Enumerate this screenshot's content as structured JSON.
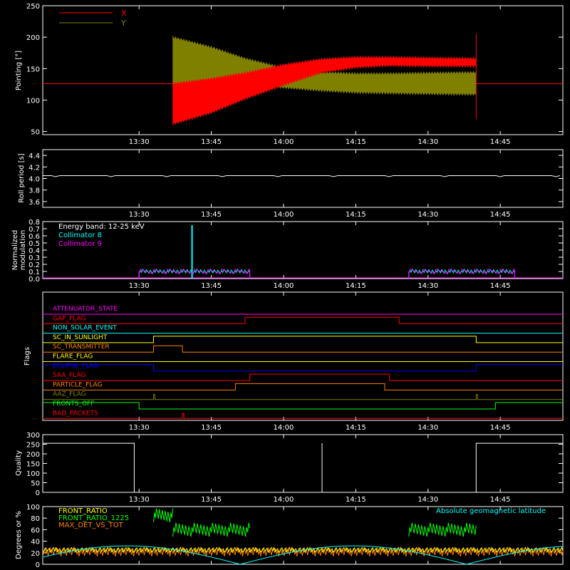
{
  "chart_data": [
    {
      "type": "line",
      "ylabel": "Pointing [°]",
      "ylim": [
        45,
        250
      ],
      "yticks": [
        50,
        100,
        150,
        200,
        250
      ],
      "legend": "top-left",
      "series": [
        {
          "name": "X",
          "color": "#ff0000",
          "baseline": 126,
          "active_from": "13:37",
          "active_to": "14:40",
          "envelope_x": [
            "13:37",
            "13:45",
            "13:52",
            "14:00",
            "14:08",
            "14:15",
            "14:22",
            "14:30",
            "14:40"
          ],
          "envelope_hi": [
            128,
            136,
            145,
            158,
            167,
            170,
            170,
            169,
            168
          ],
          "envelope_lo": [
            60,
            78,
            100,
            122,
            142,
            150,
            153,
            152,
            152
          ]
        },
        {
          "name": "Y",
          "color": "#808000",
          "baseline": 126,
          "active_from": "13:37",
          "active_to": "14:40",
          "envelope_x": [
            "13:37",
            "13:45",
            "13:52",
            "14:00",
            "14:08",
            "14:15",
            "14:22",
            "14:30",
            "14:40"
          ],
          "envelope_hi": [
            202,
            186,
            168,
            153,
            146,
            144,
            144,
            145,
            146
          ],
          "envelope_lo": [
            118,
            120,
            122,
            118,
            113,
            110,
            109,
            108,
            107
          ]
        }
      ]
    },
    {
      "type": "line",
      "ylabel": "Roll period [s]",
      "ylim": [
        3.5,
        4.5
      ],
      "yticks": [
        "3.6",
        "3.8",
        "4.0",
        "4.2",
        "4.4"
      ],
      "series": [
        {
          "name": "",
          "color": "#ffffff",
          "values": 4.05
        }
      ]
    },
    {
      "type": "line",
      "ylabel": "Normalized modulation",
      "ylim": [
        0,
        0.8
      ],
      "yticks": [
        "0.0",
        "0.1",
        "0.2",
        "0.3",
        "0.4",
        "0.5",
        "0.6",
        "0.7",
        "0.8"
      ],
      "annotation": "Energy band: 12-25 keV",
      "series": [
        {
          "name": "Collimator 8",
          "color": "#00ffff",
          "level": 0.1,
          "segments": [
            [
              "13:30",
              "13:53"
            ],
            [
              "14:26",
              "14:48"
            ]
          ],
          "spike": {
            "x": "13:41",
            "y": 0.75
          }
        },
        {
          "name": "Collimator 9",
          "color": "#ff00ff",
          "level": 0.1,
          "segments": [
            [
              "13:30",
              "13:53"
            ],
            [
              "14:26",
              "14:48"
            ]
          ]
        }
      ]
    },
    {
      "type": "step",
      "ylabel": "Flags",
      "flags": [
        {
          "name": "ATTENUATOR_STATE",
          "color": "#ff00ff",
          "transitions": []
        },
        {
          "name": "GAP_FLAG",
          "color": "#ff0000",
          "transitions": [
            [
              "13:52",
              1
            ],
            [
              "14:24",
              0
            ]
          ]
        },
        {
          "name": "NON_SOLAR_EVENT",
          "color": "#00ffff",
          "transitions": []
        },
        {
          "name": "SC_IN_SUNLIGHT",
          "color": "#ffff00",
          "start": 0,
          "transitions": [
            [
              "13:33",
              1
            ],
            [
              "14:40",
              0
            ]
          ]
        },
        {
          "name": "SC_TRANSMITTER",
          "color": "#ff8000",
          "transitions": [
            [
              "13:33",
              1
            ],
            [
              "13:39",
              0
            ]
          ]
        },
        {
          "name": "FLARE_FLAG",
          "color": "#ffff00",
          "transitions": []
        },
        {
          "name": "ECLIPSE_FLAG",
          "color": "#0000ff",
          "start": 1,
          "transitions": [
            [
              "13:33",
              0
            ],
            [
              "14:40",
              1
            ]
          ]
        },
        {
          "name": "SAA_FLAG",
          "color": "#ff0000",
          "transitions": [
            [
              "13:53",
              1
            ],
            [
              "14:22",
              0
            ]
          ]
        },
        {
          "name": "PARTICLE_FLAG",
          "color": "#ff8000",
          "transitions": [
            [
              "13:50",
              1
            ],
            [
              "14:21",
              0
            ]
          ]
        },
        {
          "name": "AAZ_FLAG",
          "color": "#808000",
          "pulses": [
            "13:33",
            "14:40"
          ]
        },
        {
          "name": "FRONTS_OFF",
          "color": "#00ff00",
          "start": 1,
          "transitions": [
            [
              "13:30",
              0
            ],
            [
              "14:44",
              1
            ]
          ]
        },
        {
          "name": "BAD_PACKETS",
          "color": "#ff0000",
          "pulses": [
            "13:39"
          ]
        }
      ]
    },
    {
      "type": "line",
      "ylabel": "Quality",
      "ylim": [
        0,
        300
      ],
      "yticks": [
        "0",
        "50",
        "100",
        "150",
        "200",
        "250",
        "300"
      ],
      "series": [
        {
          "name": "",
          "color": "#ffffff",
          "points": [
            [
              "13:10",
              255
            ],
            [
              "13:29",
              255
            ],
            [
              "13:29",
              0
            ],
            [
              "14:08",
              0
            ],
            [
              "14:08",
              255
            ],
            [
              "14:08",
              0
            ],
            [
              "14:40",
              0
            ],
            [
              "14:40",
              255
            ],
            [
              "14:58",
              255
            ]
          ]
        }
      ]
    },
    {
      "type": "line",
      "ylabel": "Degrees or %",
      "ylim": [
        0,
        100
      ],
      "yticks": [
        "0",
        "20",
        "40",
        "60",
        "80",
        "100"
      ],
      "series": [
        {
          "name": "FRONT_RATIO",
          "color": "#ffff00",
          "approx": 25
        },
        {
          "name": "FRONT_RATIO_1225",
          "color": "#00ff00",
          "approx_levels": [
            [
              "13:33",
              "13:37",
              85
            ],
            [
              "13:37",
              "13:53",
              60
            ],
            [
              "14:26",
              "14:40",
              60
            ]
          ]
        },
        {
          "name": "MAX_DET_VS_TOT",
          "color": "#ff8000",
          "approx": 22
        },
        {
          "name": "Absolute geomagnetic latitude",
          "color": "#00ffff",
          "amplitude": 32
        }
      ]
    }
  ],
  "x_axis": {
    "range": [
      "13:10",
      "14:58"
    ],
    "ticks": [
      "13:30",
      "13:45",
      "14:00",
      "14:15",
      "14:30",
      "14:45"
    ]
  }
}
